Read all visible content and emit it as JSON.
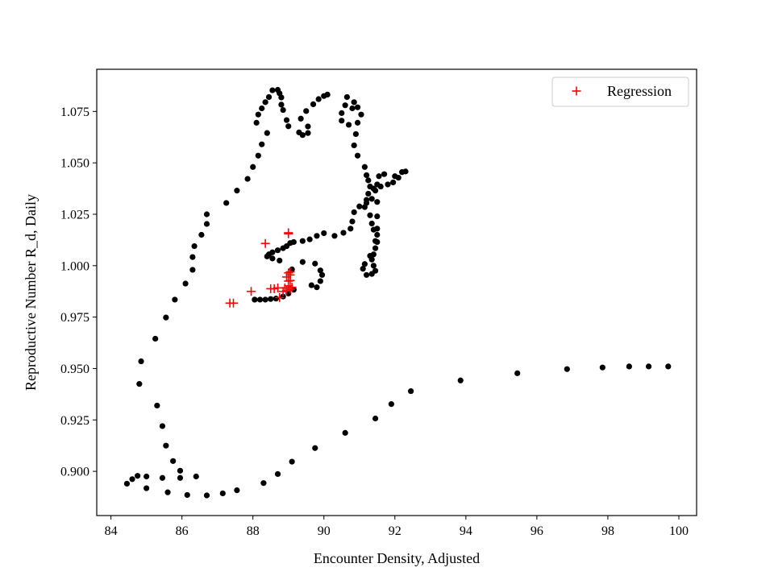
{
  "chart_data": {
    "type": "scatter",
    "title": "",
    "xlabel": "Encounter Density, Adjusted",
    "ylabel": "Reproductive Number R_d, Daily",
    "xlim": [
      83.6,
      100.5
    ],
    "ylim": [
      0.8785,
      1.0955
    ],
    "xticks": [
      84,
      86,
      88,
      90,
      92,
      94,
      96,
      98,
      100
    ],
    "xtick_labels": [
      "84",
      "86",
      "88",
      "90",
      "92",
      "94",
      "96",
      "98",
      "100"
    ],
    "yticks": [
      0.9,
      0.925,
      0.95,
      0.975,
      1.0,
      1.025,
      1.05,
      1.075
    ],
    "ytick_labels": [
      "0.900",
      "0.925",
      "0.950",
      "0.975",
      "1.000",
      "1.025",
      "1.050",
      "1.075"
    ],
    "grid": false,
    "legend": {
      "position": "top-right",
      "entries": [
        "Regression"
      ]
    },
    "series": [
      {
        "name": "",
        "marker": "dot",
        "color": "#000000",
        "points": [
          [
            99.7,
            0.951
          ],
          [
            99.15,
            0.951
          ],
          [
            98.6,
            0.951
          ],
          [
            97.85,
            0.9505
          ],
          [
            96.85,
            0.9497
          ],
          [
            95.45,
            0.9477
          ],
          [
            93.85,
            0.9442
          ],
          [
            92.45,
            0.939
          ],
          [
            91.9,
            0.9327
          ],
          [
            91.45,
            0.9257
          ],
          [
            90.6,
            0.9187
          ],
          [
            89.75,
            0.9113
          ],
          [
            89.1,
            0.9047
          ],
          [
            88.7,
            0.8987
          ],
          [
            88.3,
            0.8943
          ],
          [
            87.55,
            0.8908
          ],
          [
            87.15,
            0.8893
          ],
          [
            86.7,
            0.8883
          ],
          [
            86.15,
            0.8885
          ],
          [
            85.6,
            0.8898
          ],
          [
            85.0,
            0.8918
          ],
          [
            84.45,
            0.894
          ],
          [
            84.6,
            0.8962
          ],
          [
            84.75,
            0.8978
          ],
          [
            85.0,
            0.8975
          ],
          [
            85.45,
            0.8968
          ],
          [
            85.95,
            0.8968
          ],
          [
            86.4,
            0.8975
          ],
          [
            85.95,
            0.9003
          ],
          [
            85.75,
            0.905
          ],
          [
            85.55,
            0.9125
          ],
          [
            85.45,
            0.922
          ],
          [
            85.3,
            0.932
          ],
          [
            84.8,
            0.9425
          ],
          [
            84.85,
            0.9535
          ],
          [
            85.25,
            0.9645
          ],
          [
            85.55,
            0.9748
          ],
          [
            85.8,
            0.9835
          ],
          [
            86.1,
            0.9913
          ],
          [
            86.3,
            0.998
          ],
          [
            86.3,
            1.0042
          ],
          [
            86.35,
            1.0095
          ],
          [
            86.55,
            1.015
          ],
          [
            86.7,
            1.0203
          ],
          [
            86.7,
            1.025
          ],
          [
            87.25,
            1.0305
          ],
          [
            87.55,
            1.0365
          ],
          [
            87.85,
            1.0422
          ],
          [
            88.0,
            1.048
          ],
          [
            88.15,
            1.0535
          ],
          [
            88.25,
            1.059
          ],
          [
            88.4,
            1.0645
          ],
          [
            88.1,
            1.0695
          ],
          [
            88.15,
            1.0735
          ],
          [
            88.25,
            1.0765
          ],
          [
            88.35,
            1.0795
          ],
          [
            88.45,
            1.082
          ],
          [
            88.55,
            1.0853
          ],
          [
            88.7,
            1.0855
          ],
          [
            88.75,
            1.0838
          ],
          [
            88.8,
            1.0818
          ],
          [
            88.8,
            1.0783
          ],
          [
            88.85,
            1.0757
          ],
          [
            88.95,
            1.0708
          ],
          [
            89.0,
            1.0678
          ],
          [
            89.3,
            1.0648
          ],
          [
            89.4,
            1.0635
          ],
          [
            89.55,
            1.0645
          ],
          [
            89.55,
            1.0677
          ],
          [
            89.35,
            1.0715
          ],
          [
            89.5,
            1.0752
          ],
          [
            89.7,
            1.0785
          ],
          [
            89.85,
            1.081
          ],
          [
            90.0,
            1.0825
          ],
          [
            90.1,
            1.0832
          ],
          [
            90.65,
            1.082
          ],
          [
            90.85,
            1.0795
          ],
          [
            90.95,
            1.077
          ],
          [
            91.05,
            1.0735
          ],
          [
            90.95,
            1.0695
          ],
          [
            90.7,
            1.0685
          ],
          [
            90.5,
            1.0705
          ],
          [
            90.5,
            1.0742
          ],
          [
            90.6,
            1.078
          ],
          [
            90.8,
            1.0765
          ],
          [
            90.9,
            1.064
          ],
          [
            90.85,
            1.0585
          ],
          [
            90.95,
            1.0535
          ],
          [
            91.15,
            1.048
          ],
          [
            91.2,
            1.044
          ],
          [
            91.25,
            1.0415
          ],
          [
            91.3,
            1.0385
          ],
          [
            91.25,
            1.035
          ],
          [
            91.2,
            1.032
          ],
          [
            91.15,
            1.0285
          ],
          [
            91.3,
            1.0245
          ],
          [
            91.35,
            1.0205
          ],
          [
            91.4,
            1.0175
          ],
          [
            91.5,
            1.015
          ],
          [
            91.5,
            1.0115
          ],
          [
            91.45,
            1.0085
          ],
          [
            91.4,
            1.0055
          ],
          [
            91.35,
            1.003
          ],
          [
            91.4,
            1.0
          ],
          [
            91.45,
            0.9975
          ],
          [
            91.35,
            0.996
          ],
          [
            91.2,
            0.9955
          ],
          [
            91.1,
            0.9985
          ],
          [
            91.15,
            1.0008
          ],
          [
            91.3,
            1.0048
          ],
          [
            91.45,
            1.012
          ],
          [
            91.5,
            1.018
          ],
          [
            91.5,
            1.024
          ],
          [
            91.5,
            1.031
          ],
          [
            91.45,
            1.0365
          ],
          [
            91.5,
            1.0395
          ],
          [
            91.55,
            1.0435
          ],
          [
            91.7,
            1.0445
          ],
          [
            92.0,
            1.0435
          ],
          [
            92.2,
            1.0455
          ],
          [
            92.3,
            1.0458
          ],
          [
            92.1,
            1.0428
          ],
          [
            91.95,
            1.0405
          ],
          [
            91.8,
            1.0395
          ],
          [
            91.6,
            1.0385
          ],
          [
            91.4,
            1.0375
          ],
          [
            91.35,
            1.0325
          ],
          [
            91.2,
            1.0305
          ],
          [
            91.0,
            1.0288
          ],
          [
            90.85,
            1.026
          ],
          [
            90.8,
            1.0215
          ],
          [
            90.75,
            1.018
          ],
          [
            90.55,
            1.016
          ],
          [
            90.3,
            1.0145
          ],
          [
            90.0,
            1.0158
          ],
          [
            89.8,
            1.0145
          ],
          [
            89.6,
            1.0128
          ],
          [
            89.4,
            1.012
          ],
          [
            89.15,
            1.0115
          ],
          [
            89.05,
            1.011
          ],
          [
            88.95,
            1.0095
          ],
          [
            88.85,
            1.0085
          ],
          [
            88.7,
            1.0075
          ],
          [
            88.55,
            1.0065
          ],
          [
            88.45,
            1.0055
          ],
          [
            88.4,
            1.0045
          ],
          [
            88.55,
            1.0035
          ],
          [
            88.75,
            1.0025
          ],
          [
            89.1,
            0.9982
          ],
          [
            89.4,
            1.0018
          ],
          [
            89.75,
            1.001
          ],
          [
            89.9,
            0.9977
          ],
          [
            89.95,
            0.9955
          ],
          [
            89.9,
            0.9925
          ],
          [
            89.8,
            0.9895
          ],
          [
            89.65,
            0.9905
          ],
          [
            89.15,
            0.9883
          ],
          [
            89.0,
            0.9865
          ],
          [
            88.85,
            0.985
          ],
          [
            88.65,
            0.984
          ],
          [
            88.5,
            0.9838
          ],
          [
            88.35,
            0.9835
          ],
          [
            88.2,
            0.9835
          ],
          [
            88.05,
            0.9835
          ],
          [
            88.05,
            0.9835
          ]
        ]
      },
      {
        "name": "Regression",
        "marker": "plus",
        "color": "#ff0000",
        "points": [
          [
            87.35,
            0.9818
          ],
          [
            87.45,
            0.9818
          ],
          [
            87.95,
            0.9875
          ],
          [
            88.35,
            1.0108
          ],
          [
            88.5,
            0.9888
          ],
          [
            88.6,
            0.9888
          ],
          [
            88.7,
            0.9892
          ],
          [
            88.75,
            0.9845
          ],
          [
            88.85,
            0.9875
          ],
          [
            88.9,
            0.9892
          ],
          [
            88.95,
            0.9878
          ],
          [
            89.0,
            0.9902
          ],
          [
            89.05,
            0.9885
          ],
          [
            89.1,
            0.9895
          ],
          [
            89.0,
            0.9925
          ],
          [
            89.05,
            0.9928
          ],
          [
            88.95,
            0.9945
          ],
          [
            89.05,
            0.9955
          ],
          [
            89.0,
            0.9965
          ],
          [
            89.05,
            0.997
          ],
          [
            89.0,
            1.0155
          ],
          [
            89.0,
            1.016
          ]
        ]
      }
    ]
  }
}
